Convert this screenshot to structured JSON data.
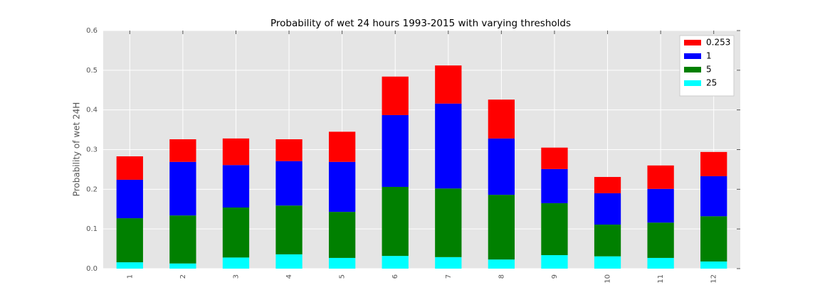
{
  "chart_data": {
    "type": "stacked_bar",
    "title": "Probability of wet 24 hours 1993-2015 with varying thresholds",
    "y_label": "Probability of wet 24H",
    "categories": [
      "1",
      "2",
      "3",
      "4",
      "5",
      "6",
      "7",
      "8",
      "9",
      "10",
      "11",
      "12"
    ],
    "series": [
      {
        "name": "0.253",
        "color": "#ff0000",
        "values": [
          0.059,
          0.057,
          0.067,
          0.055,
          0.076,
          0.097,
          0.096,
          0.098,
          0.054,
          0.041,
          0.059,
          0.061
        ]
      },
      {
        "name": "1",
        "color": "#0000ff",
        "values": [
          0.097,
          0.135,
          0.107,
          0.112,
          0.126,
          0.181,
          0.214,
          0.142,
          0.086,
          0.079,
          0.085,
          0.101
        ]
      },
      {
        "name": "5",
        "color": "#008000",
        "values": [
          0.111,
          0.121,
          0.126,
          0.123,
          0.116,
          0.174,
          0.173,
          0.163,
          0.131,
          0.08,
          0.089,
          0.114
        ]
      },
      {
        "name": "25",
        "color": "#00ffff",
        "values": [
          0.016,
          0.013,
          0.028,
          0.036,
          0.027,
          0.032,
          0.029,
          0.023,
          0.034,
          0.031,
          0.027,
          0.018
        ]
      }
    ],
    "ylim": [
      0,
      0.6
    ],
    "yticks": [
      {
        "value": 0,
        "label": "0.0"
      },
      0.1,
      0.2,
      0.3,
      0.4,
      0.5,
      0.6
    ],
    "grid": true,
    "legend": "upper-right"
  }
}
